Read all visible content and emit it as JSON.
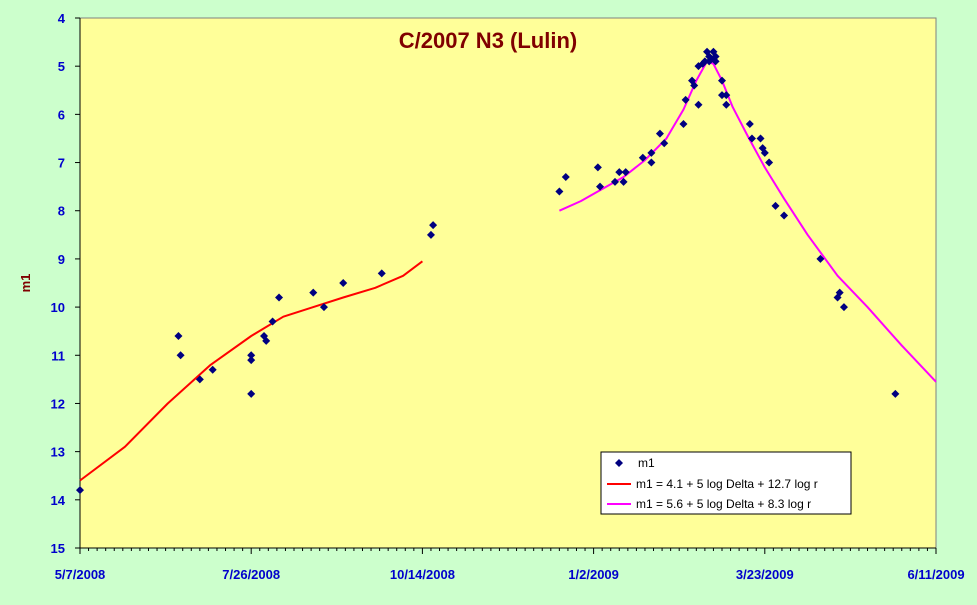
{
  "colors": {
    "background": "#ccffcc",
    "plot_area": "#ffff99",
    "axis_text": "#0000cc",
    "title": "#800000",
    "points": "#000080",
    "fit_1": "#ff0000",
    "fit_2": "#ff00ff"
  },
  "chart_data": {
    "type": "scatter",
    "title": "C/2007 N3 (Lulin)",
    "ylabel": "m1",
    "xlabel": "",
    "y_reversed": true,
    "ylim": [
      4,
      15
    ],
    "yticks": [
      4,
      5,
      6,
      7,
      8,
      9,
      10,
      11,
      12,
      13,
      14,
      15
    ],
    "xlim": [
      "2008-05-07",
      "2009-06-11"
    ],
    "xticks": [
      "5/7/2008",
      "7/26/2008",
      "10/14/2008",
      "1/2/2009",
      "3/23/2009",
      "6/11/2009"
    ],
    "grid": false,
    "legend_position": "bottom-right",
    "series": [
      {
        "name": "m1",
        "kind": "points",
        "marker": "diamond",
        "points": [
          [
            "2008-05-07",
            13.8
          ],
          [
            "2008-06-22",
            10.6
          ],
          [
            "2008-06-23",
            11.0
          ],
          [
            "2008-07-02",
            11.5
          ],
          [
            "2008-07-08",
            11.3
          ],
          [
            "2008-07-26",
            11.8
          ],
          [
            "2008-07-26",
            11.0
          ],
          [
            "2008-07-26",
            11.1
          ],
          [
            "2008-08-01",
            10.6
          ],
          [
            "2008-08-02",
            10.7
          ],
          [
            "2008-08-05",
            10.3
          ],
          [
            "2008-08-08",
            9.8
          ],
          [
            "2008-08-24",
            9.7
          ],
          [
            "2008-08-29",
            10.0
          ],
          [
            "2008-09-07",
            9.5
          ],
          [
            "2008-09-25",
            9.3
          ],
          [
            "2008-10-18",
            8.5
          ],
          [
            "2008-10-19",
            8.3
          ],
          [
            "2008-12-17",
            7.6
          ],
          [
            "2008-12-20",
            7.3
          ],
          [
            "2009-01-04",
            7.1
          ],
          [
            "2009-01-05",
            7.5
          ],
          [
            "2009-01-12",
            7.4
          ],
          [
            "2009-01-14",
            7.2
          ],
          [
            "2009-01-16",
            7.4
          ],
          [
            "2009-01-17",
            7.2
          ],
          [
            "2009-01-25",
            6.9
          ],
          [
            "2009-01-29",
            6.8
          ],
          [
            "2009-01-29",
            7.0
          ],
          [
            "2009-02-02",
            6.4
          ],
          [
            "2009-02-04",
            6.6
          ],
          [
            "2009-02-13",
            6.2
          ],
          [
            "2009-02-14",
            5.7
          ],
          [
            "2009-02-17",
            5.3
          ],
          [
            "2009-02-18",
            5.4
          ],
          [
            "2009-02-20",
            5.8
          ],
          [
            "2009-02-20",
            5.0
          ],
          [
            "2009-02-22",
            4.95
          ],
          [
            "2009-02-23",
            4.9
          ],
          [
            "2009-02-24",
            4.7
          ],
          [
            "2009-02-25",
            4.8
          ],
          [
            "2009-02-25",
            4.9
          ],
          [
            "2009-02-26",
            4.85
          ],
          [
            "2009-02-27",
            4.7
          ],
          [
            "2009-02-28",
            4.8
          ],
          [
            "2009-02-28",
            4.9
          ],
          [
            "2009-03-03",
            5.3
          ],
          [
            "2009-03-03",
            5.6
          ],
          [
            "2009-03-05",
            5.6
          ],
          [
            "2009-03-05",
            5.8
          ],
          [
            "2009-03-16",
            6.2
          ],
          [
            "2009-03-17",
            6.5
          ],
          [
            "2009-03-21",
            6.5
          ],
          [
            "2009-03-22",
            6.7
          ],
          [
            "2009-03-23",
            6.8
          ],
          [
            "2009-03-25",
            7.0
          ],
          [
            "2009-03-28",
            7.9
          ],
          [
            "2009-04-01",
            8.1
          ],
          [
            "2009-04-18",
            9.0
          ],
          [
            "2009-04-26",
            9.8
          ],
          [
            "2009-04-27",
            9.7
          ],
          [
            "2009-04-29",
            10.0
          ],
          [
            "2009-05-23",
            11.8
          ]
        ]
      },
      {
        "name": "m1 = 4.1 + 5 log Delta + 12.7 log r",
        "kind": "line",
        "points": [
          [
            "2008-05-07",
            13.6
          ],
          [
            "2008-05-28",
            12.9
          ],
          [
            "2008-06-17",
            12.0
          ],
          [
            "2008-07-07",
            11.2
          ],
          [
            "2008-07-26",
            10.6
          ],
          [
            "2008-08-10",
            10.2
          ],
          [
            "2008-08-24",
            10.0
          ],
          [
            "2008-09-07",
            9.8
          ],
          [
            "2008-09-22",
            9.6
          ],
          [
            "2008-10-05",
            9.35
          ],
          [
            "2008-10-14",
            9.05
          ]
        ]
      },
      {
        "name": "m1 = 5.6 + 5 log Delta + 8.3 log r",
        "kind": "line",
        "points": [
          [
            "2008-12-17",
            8.0
          ],
          [
            "2008-12-27",
            7.8
          ],
          [
            "2009-01-06",
            7.55
          ],
          [
            "2009-01-16",
            7.3
          ],
          [
            "2009-01-26",
            6.95
          ],
          [
            "2009-02-05",
            6.5
          ],
          [
            "2009-02-13",
            5.9
          ],
          [
            "2009-02-19",
            5.3
          ],
          [
            "2009-02-24",
            4.9
          ],
          [
            "2009-02-27",
            4.95
          ],
          [
            "2009-03-03",
            5.3
          ],
          [
            "2009-03-08",
            5.85
          ],
          [
            "2009-03-15",
            6.45
          ],
          [
            "2009-03-23",
            7.1
          ],
          [
            "2009-04-01",
            7.75
          ],
          [
            "2009-04-12",
            8.5
          ],
          [
            "2009-04-26",
            9.35
          ],
          [
            "2009-05-10",
            10.0
          ],
          [
            "2009-05-26",
            10.8
          ],
          [
            "2009-06-11",
            11.55
          ]
        ]
      }
    ]
  }
}
